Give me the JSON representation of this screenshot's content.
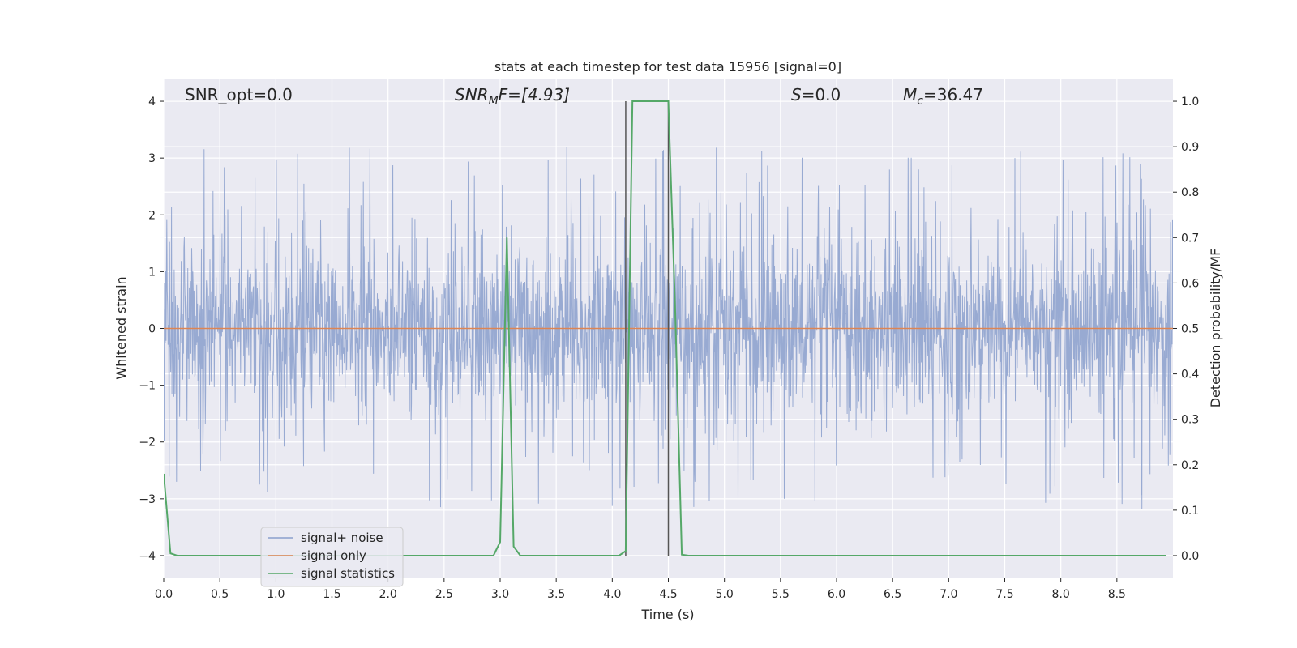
{
  "chart_data": {
    "type": "line",
    "title": "stats at each timestep for test data 15956 [signal=0]",
    "xlabel": "Time (s)",
    "ylabel_left": "Whitened strain",
    "ylabel_right": "Detection probability/MF",
    "xlim": [
      0.0,
      9.0
    ],
    "ylim_left": [
      -4.4,
      4.4
    ],
    "ylim_right": [
      -0.05,
      1.05
    ],
    "x_ticks": [
      0.0,
      0.5,
      1.0,
      1.5,
      2.0,
      2.5,
      3.0,
      3.5,
      4.0,
      4.5,
      5.0,
      5.5,
      6.0,
      6.5,
      7.0,
      7.5,
      8.0,
      8.5
    ],
    "x_tick_labels": [
      "0.0",
      "0.5",
      "1.0",
      "1.5",
      "2.0",
      "2.5",
      "3.0",
      "3.5",
      "4.0",
      "4.5",
      "5.0",
      "5.5",
      "6.0",
      "6.5",
      "7.0",
      "7.5",
      "8.0",
      "8.5"
    ],
    "y_left_ticks": [
      -4,
      -3,
      -2,
      -1,
      0,
      1,
      2,
      3,
      4
    ],
    "y_left_tick_labels": [
      "−4",
      "−3",
      "−2",
      "−1",
      "0",
      "1",
      "2",
      "3",
      "4"
    ],
    "y_right_ticks": [
      0.0,
      0.1,
      0.2,
      0.3,
      0.4,
      0.5,
      0.6,
      0.7,
      0.8,
      0.9,
      1.0
    ],
    "y_right_tick_labels": [
      "0.0",
      "0.1",
      "0.2",
      "0.3",
      "0.4",
      "0.5",
      "0.6",
      "0.7",
      "0.8",
      "0.9",
      "1.0"
    ],
    "grid": true,
    "legend": {
      "placement": "lower-left",
      "entries": [
        {
          "label": "signal+ noise",
          "color": "#8a9fcc"
        },
        {
          "label": "signal only",
          "color": "#dd8452"
        },
        {
          "label": "signal statistics",
          "color": "#55a868"
        }
      ]
    },
    "annotations": {
      "snr_opt": "SNR_opt=0.0",
      "snr_mf_prefix": "SNR",
      "snr_mf_sub": "M",
      "snr_mf_suffix": "F=[4.93]",
      "s_var": "S",
      "s_value": "=0.0",
      "mc_var": "M",
      "mc_sub": "c",
      "mc_value": "=36.47"
    },
    "vertical_lines_x": [
      4.12,
      4.5
    ],
    "series": [
      {
        "name": "signal+ noise",
        "axis": "left",
        "color": "#8a9fcc",
        "description_envelope": {
          "typical_amplitude": 1.6,
          "peak_max": 3.62,
          "peak_min": -3.8,
          "samples_per_second": 4096
        }
      },
      {
        "name": "signal only",
        "axis": "left",
        "color": "#dd8452",
        "x": [
          0.0,
          9.0
        ],
        "y": [
          0.0,
          0.0
        ]
      },
      {
        "name": "signal statistics",
        "axis": "right",
        "color": "#55a868",
        "x": [
          0.0,
          0.06,
          0.12,
          0.18,
          0.5,
          1.0,
          1.5,
          2.0,
          2.5,
          2.94,
          3.0,
          3.06,
          3.12,
          3.18,
          3.5,
          4.0,
          4.06,
          4.12,
          4.18,
          4.25,
          4.35,
          4.5,
          4.56,
          4.62,
          4.68,
          5.0,
          6.0,
          7.0,
          8.0,
          8.94
        ],
        "y": [
          0.18,
          0.005,
          0.0,
          0.0,
          0.0,
          0.0,
          0.0,
          0.0,
          0.0,
          0.0,
          0.03,
          0.7,
          0.02,
          0.0,
          0.0,
          0.0,
          0.0,
          0.01,
          1.0,
          1.0,
          1.0,
          1.0,
          0.55,
          0.002,
          0.0,
          0.0,
          0.0,
          0.0,
          0.0,
          0.0
        ]
      }
    ]
  }
}
